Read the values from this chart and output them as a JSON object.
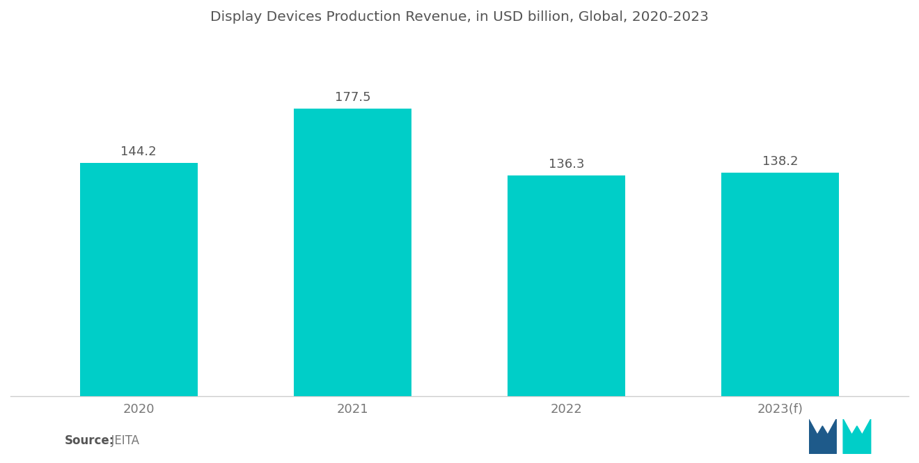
{
  "title": "Display Devices Production Revenue, in USD billion, Global, 2020-2023",
  "categories": [
    "2020",
    "2021",
    "2022",
    "2023(f)"
  ],
  "values": [
    144.2,
    177.5,
    136.3,
    138.2
  ],
  "bar_color": "#00CEC8",
  "background_color": "#ffffff",
  "title_fontsize": 14.5,
  "label_fontsize": 13,
  "tick_fontsize": 13,
  "source_bold": "Source:",
  "source_normal": "  JEITA",
  "ylim": [
    0,
    215
  ],
  "bar_width": 0.55,
  "logo_blue": "#1E5A8A",
  "logo_teal": "#00CEC8",
  "label_color": "#555555",
  "tick_color": "#777777",
  "spine_color": "#cccccc"
}
